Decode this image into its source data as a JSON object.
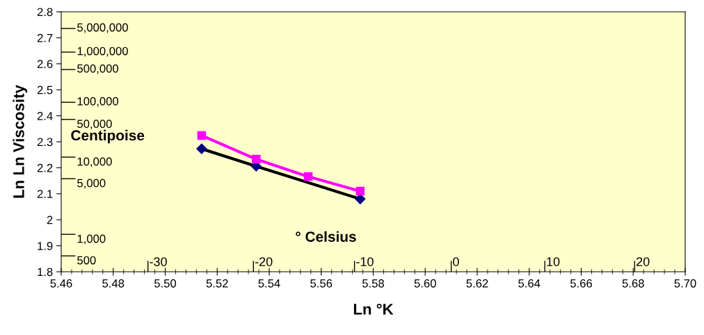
{
  "chart_data": {
    "type": "line",
    "xlabel": "Ln °K",
    "ylabel": "Ln Ln Viscosity",
    "xlim": [
      5.46,
      5.7
    ],
    "ylim": [
      1.8,
      2.8
    ],
    "xticks": [
      {
        "value": 5.46,
        "label": "5.46"
      },
      {
        "value": 5.48,
        "label": "5.48"
      },
      {
        "value": 5.5,
        "label": "5.50"
      },
      {
        "value": 5.52,
        "label": "5.52"
      },
      {
        "value": 5.54,
        "label": "5.54"
      },
      {
        "value": 5.56,
        "label": "5.56"
      },
      {
        "value": 5.58,
        "label": "5.58"
      },
      {
        "value": 5.6,
        "label": "5.60"
      },
      {
        "value": 5.62,
        "label": "5.62"
      },
      {
        "value": 5.64,
        "label": "5.64"
      },
      {
        "value": 5.66,
        "label": "5.66"
      },
      {
        "value": 5.68,
        "label": "5.68"
      },
      {
        "value": 5.7,
        "label": "5.70"
      }
    ],
    "yticks": [
      1.8,
      1.9,
      2,
      2.1,
      2.2,
      2.3,
      2.4,
      2.5,
      2.6,
      2.7,
      2.8
    ],
    "grid": false,
    "legend": false,
    "line_style": "solid",
    "series": [
      {
        "color": "#000000",
        "marker": "diamond",
        "x": [
          5.514,
          5.535,
          5.575
        ],
        "values": [
          2.273,
          2.206,
          2.08
        ]
      },
      {
        "color": "#ff00ff",
        "marker": "square",
        "x": [
          5.514,
          5.535,
          5.555,
          5.575
        ],
        "values": [
          2.324,
          2.233,
          2.166,
          2.11
        ]
      }
    ],
    "annotations": [
      "5,000,000",
      "1,000,000",
      "500,000",
      "100,000",
      "50,000",
      "10,000",
      "5,000",
      "1,000",
      "500",
      "-30",
      "-20",
      "-10",
      "0",
      "10",
      "20",
      "Centipoise",
      "° Celsius"
    ]
  }
}
